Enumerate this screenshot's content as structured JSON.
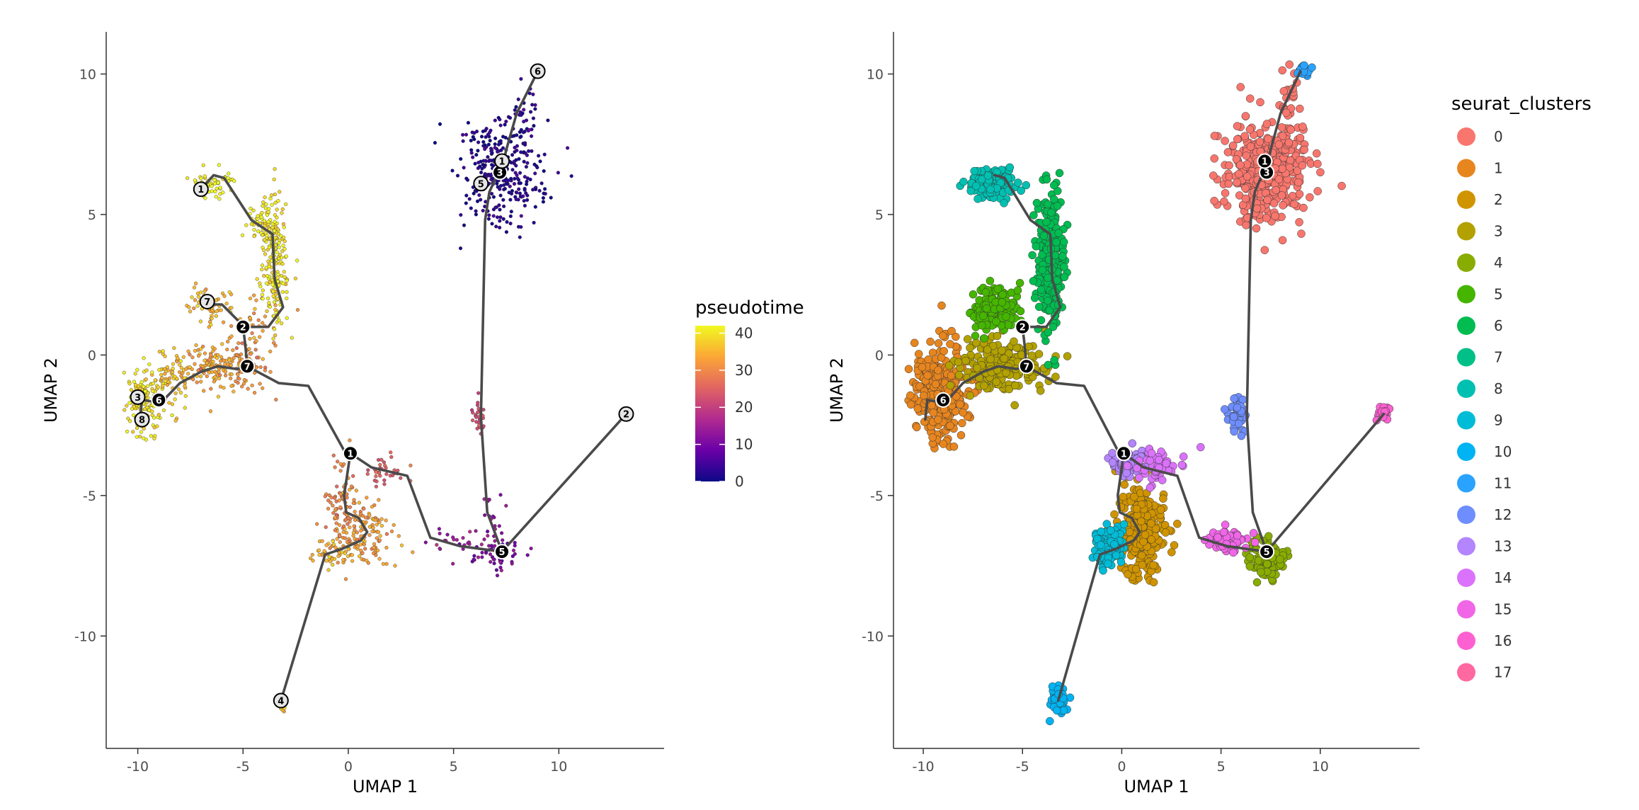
{
  "chart_data": [
    {
      "type": "scatter",
      "panel": "left",
      "xlabel": "UMAP 1",
      "ylabel": "UMAP 2",
      "xlim": [
        -11.5,
        15
      ],
      "ylim": [
        -14,
        11.5
      ],
      "xticks": [
        -10,
        -5,
        0,
        5,
        10
      ],
      "yticks": [
        -10,
        -5,
        0,
        5,
        10
      ],
      "xtick_labels": [
        "-10",
        "-5",
        "0",
        "5",
        "10"
      ],
      "ytick_labels": [
        "-10",
        "-5",
        "0",
        "5",
        "10"
      ],
      "color_by": "pseudotime",
      "legend": {
        "title": "pseudotime",
        "type": "colorbar",
        "range": [
          0,
          42
        ],
        "ticks": [
          40,
          30,
          20,
          10,
          0
        ],
        "tick_labels": [
          "40",
          "30",
          "20",
          "10",
          "0"
        ],
        "colors": [
          "#0d0887",
          "#6a00a8",
          "#b12a90",
          "#e16462",
          "#fca636",
          "#f0f921"
        ]
      },
      "trajectory": [
        [
          [
            -7.0,
            5.9
          ],
          [
            -6.4,
            6.4
          ],
          [
            -5.9,
            6.3
          ],
          [
            -4.6,
            4.8
          ],
          [
            -3.6,
            4.3
          ],
          [
            -3.5,
            2.7
          ],
          [
            -3.1,
            1.7
          ],
          [
            -3.8,
            1.0
          ],
          [
            -5.0,
            1.0
          ]
        ],
        [
          [
            -6.8,
            1.8
          ],
          [
            -6.0,
            1.8
          ],
          [
            -5.2,
            1.2
          ],
          [
            -5.0,
            1.0
          ]
        ],
        [
          [
            -5.0,
            1.0
          ],
          [
            -4.9,
            0.4
          ],
          [
            -4.8,
            -0.4
          ]
        ],
        [
          [
            -9.9,
            -2.3
          ],
          [
            -9.8,
            -1.6
          ],
          [
            -8.9,
            -1.7
          ],
          [
            -8.0,
            -1.0
          ],
          [
            -7.0,
            -0.6
          ],
          [
            -6.2,
            -0.4
          ],
          [
            -5.3,
            -0.5
          ],
          [
            -4.8,
            -0.4
          ]
        ],
        [
          [
            -10.0,
            -1.5
          ],
          [
            -9.8,
            -1.6
          ]
        ],
        [
          [
            -4.8,
            -0.4
          ],
          [
            -3.3,
            -1.0
          ],
          [
            -1.9,
            -1.1
          ],
          [
            -0.2,
            -3.4
          ],
          [
            0.1,
            -3.5
          ]
        ],
        [
          [
            0.1,
            -3.5
          ],
          [
            1.1,
            -4.0
          ],
          [
            2.8,
            -4.3
          ],
          [
            3.9,
            -6.5
          ],
          [
            5.3,
            -6.8
          ],
          [
            7.3,
            -7.0
          ],
          [
            13.2,
            -2.1
          ]
        ],
        [
          [
            0.1,
            -3.5
          ],
          [
            -0.2,
            -5.0
          ],
          [
            -0.1,
            -5.6
          ],
          [
            0.5,
            -5.8
          ],
          [
            0.9,
            -6.3
          ],
          [
            0.6,
            -6.6
          ],
          [
            -0.3,
            -6.9
          ],
          [
            -1.1,
            -7.1
          ],
          [
            -3.2,
            -12.3
          ]
        ],
        [
          [
            7.3,
            -7.0
          ],
          [
            6.6,
            -5.6
          ],
          [
            6.3,
            -2.2
          ],
          [
            6.5,
            4.8
          ],
          [
            6.7,
            5.8
          ],
          [
            7.0,
            6.3
          ],
          [
            7.3,
            6.6
          ],
          [
            7.5,
            7.3
          ],
          [
            8.0,
            8.6
          ],
          [
            9.0,
            10.1
          ]
        ]
      ],
      "nodes": [
        {
          "x": 0.1,
          "y": -3.5,
          "label": "1",
          "kind": "branch"
        },
        {
          "x": -5.0,
          "y": 1.0,
          "label": "2",
          "kind": "branch"
        },
        {
          "x": 7.3,
          "y": -7.0,
          "label": "5",
          "kind": "branch"
        },
        {
          "x": -9.0,
          "y": -1.6,
          "label": "6",
          "kind": "branch"
        },
        {
          "x": -4.8,
          "y": -0.4,
          "label": "7",
          "kind": "branch"
        },
        {
          "x": 7.2,
          "y": 6.5,
          "label": "3",
          "kind": "branch"
        },
        {
          "x": -7.0,
          "y": 5.9,
          "label": "1",
          "kind": "leaf"
        },
        {
          "x": 13.2,
          "y": -2.1,
          "label": "2",
          "kind": "leaf"
        },
        {
          "x": -10.0,
          "y": -1.5,
          "label": "3",
          "kind": "leaf"
        },
        {
          "x": -3.2,
          "y": -12.3,
          "label": "4",
          "kind": "leaf"
        },
        {
          "x": 6.3,
          "y": 6.1,
          "label": "5",
          "kind": "leaf"
        },
        {
          "x": 9.0,
          "y": 10.1,
          "label": "6",
          "kind": "leaf"
        },
        {
          "x": -6.7,
          "y": 1.9,
          "label": "7",
          "kind": "leaf"
        },
        {
          "x": -9.8,
          "y": -2.3,
          "label": "8",
          "kind": "leaf"
        },
        {
          "x": 7.3,
          "y": 6.9,
          "label": "1",
          "kind": "leaf"
        }
      ],
      "groups": [
        {
          "cx": 7.3,
          "cy": 6.5,
          "sx": 1.0,
          "sy": 0.9,
          "n": 320,
          "pt": 2
        },
        {
          "cx": 8.4,
          "cy": 8.7,
          "sx": 0.25,
          "sy": 0.7,
          "n": 25,
          "pt": 3
        },
        {
          "cx": 9.0,
          "cy": 10.1,
          "sx": 0.15,
          "sy": 0.1,
          "n": 14,
          "pt": 8
        },
        {
          "cx": 6.2,
          "cy": -2.1,
          "sx": 0.15,
          "sy": 0.35,
          "n": 30,
          "pt": 22
        },
        {
          "cx": 7.1,
          "cy": -7.1,
          "sx": 0.5,
          "sy": 0.3,
          "n": 60,
          "pt": 10
        },
        {
          "cx": 5.1,
          "cy": -6.7,
          "sx": 0.6,
          "sy": 0.25,
          "n": 25,
          "pt": 14
        },
        {
          "cx": 6.8,
          "cy": -5.8,
          "sx": 0.3,
          "sy": 0.4,
          "n": 18,
          "pt": 12
        },
        {
          "cx": 13.2,
          "cy": -2.1,
          "sx": 0.1,
          "sy": 0.1,
          "n": 10,
          "pt": 26
        },
        {
          "cx": 0.8,
          "cy": -6.4,
          "sx": 0.8,
          "sy": 0.6,
          "n": 150,
          "pt": 33
        },
        {
          "cx": -0.2,
          "cy": -5.2,
          "sx": 0.35,
          "sy": 0.7,
          "n": 70,
          "pt": 30
        },
        {
          "cx": -0.8,
          "cy": -7.0,
          "sx": 0.5,
          "sy": 0.25,
          "n": 40,
          "pt": 35
        },
        {
          "cx": 1.7,
          "cy": -4.1,
          "sx": 0.6,
          "sy": 0.3,
          "n": 35,
          "pt": 24
        },
        {
          "cx": -3.2,
          "cy": -12.5,
          "sx": 0.12,
          "sy": 0.15,
          "n": 10,
          "pt": 38
        },
        {
          "cx": -9.7,
          "cy": -1.6,
          "sx": 0.4,
          "sy": 0.6,
          "n": 150,
          "pt": 40
        },
        {
          "cx": -8.4,
          "cy": -0.8,
          "sx": 0.6,
          "sy": 0.5,
          "n": 80,
          "pt": 37
        },
        {
          "cx": -6.2,
          "cy": -0.4,
          "sx": 0.9,
          "sy": 0.4,
          "n": 140,
          "pt": 34
        },
        {
          "cx": -4.7,
          "cy": -0.4,
          "sx": 0.5,
          "sy": 0.4,
          "n": 60,
          "pt": 31
        },
        {
          "cx": -6.6,
          "cy": 1.8,
          "sx": 0.5,
          "sy": 0.3,
          "n": 60,
          "pt": 36
        },
        {
          "cx": -4.4,
          "cy": 1.1,
          "sx": 0.6,
          "sy": 0.5,
          "n": 40,
          "pt": 33
        },
        {
          "cx": -3.5,
          "cy": 3.4,
          "sx": 0.35,
          "sy": 1.1,
          "n": 200,
          "pt": 40
        },
        {
          "cx": -4.1,
          "cy": 4.7,
          "sx": 0.3,
          "sy": 0.3,
          "n": 40,
          "pt": 41
        },
        {
          "cx": -6.5,
          "cy": 6.1,
          "sx": 0.5,
          "sy": 0.25,
          "n": 60,
          "pt": 42
        }
      ]
    },
    {
      "type": "scatter",
      "panel": "right",
      "xlabel": "UMAP 1",
      "ylabel": "UMAP 2",
      "xlim": [
        -11.5,
        15
      ],
      "ylim": [
        -14,
        11.5
      ],
      "xticks": [
        -10,
        -5,
        0,
        5,
        10
      ],
      "yticks": [
        -10,
        -5,
        0,
        5,
        10
      ],
      "xtick_labels": [
        "-10",
        "-5",
        "0",
        "5",
        "10"
      ],
      "ytick_labels": [
        "-10",
        "-5",
        "0",
        "5",
        "10"
      ],
      "color_by": "seurat_clusters",
      "legend": {
        "title": "seurat_clusters",
        "type": "categorical",
        "position": "right",
        "items": [
          {
            "label": "0",
            "color": "#F8766D"
          },
          {
            "label": "1",
            "color": "#E7851E"
          },
          {
            "label": "2",
            "color": "#D09400"
          },
          {
            "label": "3",
            "color": "#B2A100"
          },
          {
            "label": "4",
            "color": "#89AC00"
          },
          {
            "label": "5",
            "color": "#45B500"
          },
          {
            "label": "6",
            "color": "#00BC51"
          },
          {
            "label": "7",
            "color": "#00C087"
          },
          {
            "label": "8",
            "color": "#00C0B2"
          },
          {
            "label": "9",
            "color": "#00BCD6"
          },
          {
            "label": "10",
            "color": "#00B3F2"
          },
          {
            "label": "11",
            "color": "#29A3FF"
          },
          {
            "label": "12",
            "color": "#6E8EFF"
          },
          {
            "label": "13",
            "color": "#B385FF"
          },
          {
            "label": "14",
            "color": "#DB72FB"
          },
          {
            "label": "15",
            "color": "#F066E7"
          },
          {
            "label": "16",
            "color": "#FD61D1"
          },
          {
            "label": "17",
            "color": "#FF68A1"
          }
        ]
      },
      "trajectory": [
        [
          [
            -6.4,
            6.4
          ],
          [
            -5.9,
            6.3
          ],
          [
            -4.6,
            4.8
          ],
          [
            -3.6,
            4.3
          ],
          [
            -3.5,
            2.7
          ],
          [
            -3.1,
            1.7
          ],
          [
            -3.8,
            1.0
          ],
          [
            -5.0,
            1.0
          ]
        ],
        [
          [
            -5.0,
            1.0
          ],
          [
            -4.9,
            0.4
          ],
          [
            -4.8,
            -0.4
          ]
        ],
        [
          [
            -9.9,
            -2.3
          ],
          [
            -9.8,
            -1.6
          ],
          [
            -8.9,
            -1.7
          ],
          [
            -8.0,
            -1.0
          ],
          [
            -7.0,
            -0.6
          ],
          [
            -6.2,
            -0.4
          ],
          [
            -5.3,
            -0.5
          ],
          [
            -4.8,
            -0.4
          ]
        ],
        [
          [
            -4.8,
            -0.4
          ],
          [
            -3.3,
            -1.0
          ],
          [
            -1.9,
            -1.1
          ],
          [
            -0.2,
            -3.4
          ],
          [
            0.1,
            -3.5
          ]
        ],
        [
          [
            0.1,
            -3.5
          ],
          [
            1.1,
            -4.0
          ],
          [
            2.8,
            -4.3
          ],
          [
            3.9,
            -6.5
          ],
          [
            5.3,
            -6.8
          ],
          [
            7.3,
            -7.0
          ],
          [
            13.2,
            -2.1
          ]
        ],
        [
          [
            0.1,
            -3.5
          ],
          [
            -0.2,
            -5.0
          ],
          [
            -0.1,
            -5.6
          ],
          [
            0.5,
            -5.8
          ],
          [
            0.9,
            -6.3
          ],
          [
            0.6,
            -6.6
          ],
          [
            -0.3,
            -6.9
          ],
          [
            -1.1,
            -7.1
          ],
          [
            -3.2,
            -12.3
          ]
        ],
        [
          [
            7.3,
            -7.0
          ],
          [
            6.6,
            -5.6
          ],
          [
            6.3,
            -2.2
          ],
          [
            6.5,
            4.8
          ],
          [
            6.7,
            5.8
          ],
          [
            7.0,
            6.3
          ],
          [
            7.3,
            6.6
          ],
          [
            7.5,
            7.3
          ],
          [
            8.0,
            8.6
          ],
          [
            9.0,
            10.1
          ]
        ]
      ],
      "nodes": [
        {
          "x": 0.1,
          "y": -3.5,
          "label": "1",
          "kind": "branch"
        },
        {
          "x": -5.0,
          "y": 1.0,
          "label": "2",
          "kind": "branch"
        },
        {
          "x": 7.3,
          "y": -7.0,
          "label": "5",
          "kind": "branch"
        },
        {
          "x": -9.0,
          "y": -1.6,
          "label": "6",
          "kind": "branch"
        },
        {
          "x": -4.8,
          "y": -0.4,
          "label": "7",
          "kind": "branch"
        },
        {
          "x": 7.3,
          "y": 6.5,
          "label": "3",
          "kind": "branch"
        },
        {
          "x": 7.2,
          "y": 6.9,
          "label": "1",
          "kind": "branch"
        }
      ],
      "groups": [
        {
          "cx": 7.3,
          "cy": 6.5,
          "sx": 1.0,
          "sy": 0.9,
          "n": 380,
          "c": 0
        },
        {
          "cx": 8.4,
          "cy": 8.6,
          "sx": 0.25,
          "sy": 0.8,
          "n": 30,
          "c": 0
        },
        {
          "cx": -9.2,
          "cy": -1.4,
          "sx": 0.7,
          "sy": 0.8,
          "n": 300,
          "c": 1
        },
        {
          "cx": 1.0,
          "cy": -6.2,
          "sx": 0.6,
          "sy": 0.8,
          "n": 260,
          "c": 2
        },
        {
          "cx": -6.0,
          "cy": -0.4,
          "sx": 1.1,
          "sy": 0.45,
          "n": 200,
          "c": 3
        },
        {
          "cx": 7.3,
          "cy": -7.3,
          "sx": 0.5,
          "sy": 0.35,
          "n": 90,
          "c": 4
        },
        {
          "cx": -6.4,
          "cy": 1.7,
          "sx": 0.6,
          "sy": 0.4,
          "n": 140,
          "c": 5
        },
        {
          "cx": -3.6,
          "cy": 3.4,
          "sx": 0.35,
          "sy": 1.2,
          "n": 260,
          "c": 6
        },
        {
          "cx": -6.5,
          "cy": 6.1,
          "sx": 0.6,
          "sy": 0.3,
          "n": 110,
          "c": 8
        },
        {
          "cx": -0.7,
          "cy": -6.8,
          "sx": 0.4,
          "sy": 0.35,
          "n": 110,
          "c": 9
        },
        {
          "cx": -3.2,
          "cy": -12.3,
          "sx": 0.2,
          "sy": 0.25,
          "n": 40,
          "c": 10
        },
        {
          "cx": 9.2,
          "cy": 10.1,
          "sx": 0.15,
          "sy": 0.12,
          "n": 25,
          "c": 11
        },
        {
          "cx": 5.9,
          "cy": -2.1,
          "sx": 0.2,
          "sy": 0.35,
          "n": 45,
          "c": 12
        },
        {
          "cx": 0.3,
          "cy": -3.8,
          "sx": 0.5,
          "sy": 0.25,
          "n": 60,
          "c": 13
        },
        {
          "cx": 1.8,
          "cy": -4.0,
          "sx": 0.6,
          "sy": 0.35,
          "n": 60,
          "c": 14
        },
        {
          "cx": 5.3,
          "cy": -6.6,
          "sx": 0.5,
          "sy": 0.2,
          "n": 60,
          "c": 15
        },
        {
          "cx": 13.2,
          "cy": -2.1,
          "sx": 0.12,
          "sy": 0.12,
          "n": 25,
          "c": 16
        }
      ]
    }
  ]
}
